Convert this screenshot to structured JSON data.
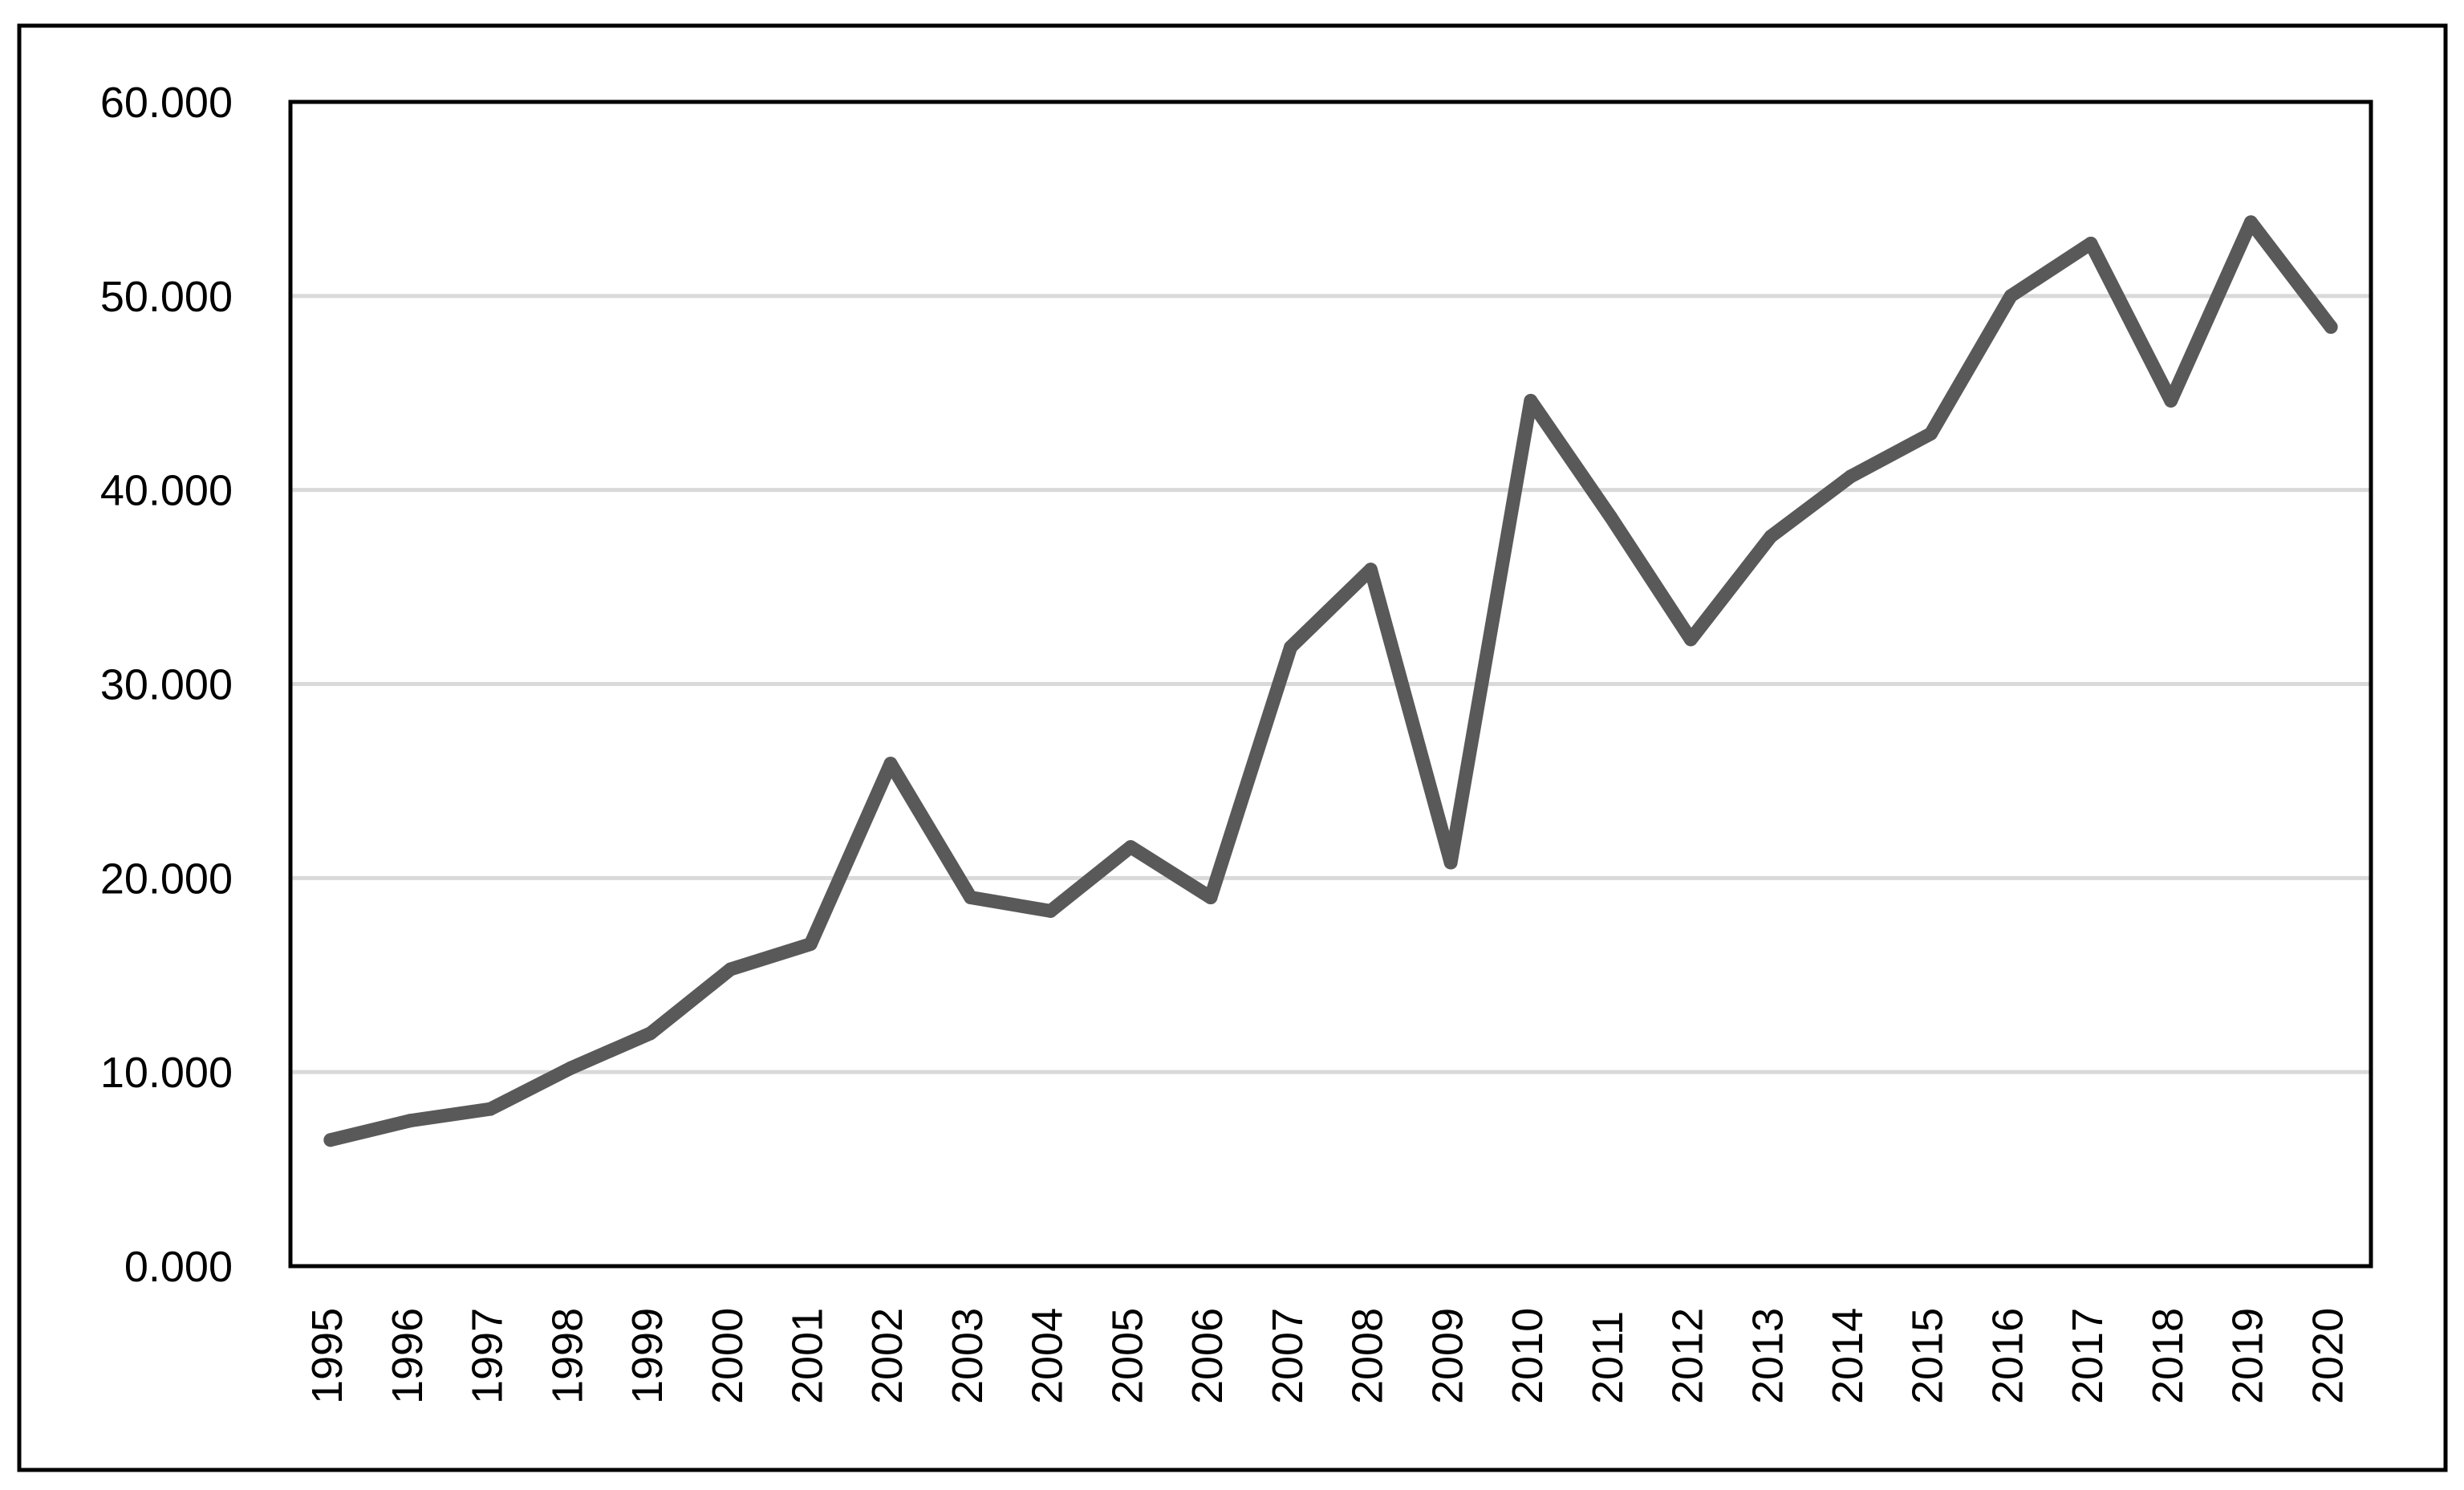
{
  "chart_data": {
    "type": "line",
    "title": "",
    "xlabel": "",
    "ylabel": "",
    "x": [
      "1995",
      "1996",
      "1997",
      "1998",
      "1999",
      "2000",
      "2001",
      "2002",
      "2003",
      "2004",
      "2005",
      "2006",
      "2007",
      "2008",
      "2009",
      "2010",
      "2011",
      "2012",
      "2013",
      "2014",
      "2015",
      "2016",
      "2017",
      "2018",
      "2019",
      "2020"
    ],
    "series": [
      {
        "name": "",
        "values": [
          6.5,
          7.5,
          8.1,
          10.2,
          12.0,
          15.3,
          16.6,
          25.9,
          19.0,
          18.3,
          21.6,
          19.0,
          31.9,
          35.9,
          20.8,
          44.6,
          38.6,
          32.3,
          37.6,
          40.7,
          42.9,
          50.0,
          52.7,
          44.6,
          53.8,
          48.4
        ]
      }
    ],
    "ylim": [
      0,
      60
    ],
    "y_ticks": [
      0,
      10,
      20,
      30,
      40,
      50,
      60
    ],
    "y_tick_labels": [
      "0.000",
      "10.000",
      "20.000",
      "30.000",
      "40.000",
      "50.000",
      "60.000"
    ],
    "grid": true,
    "legend": "none",
    "colors": {
      "line": "#595959",
      "grid": "#d9d9d9",
      "frame": "#000000"
    }
  }
}
